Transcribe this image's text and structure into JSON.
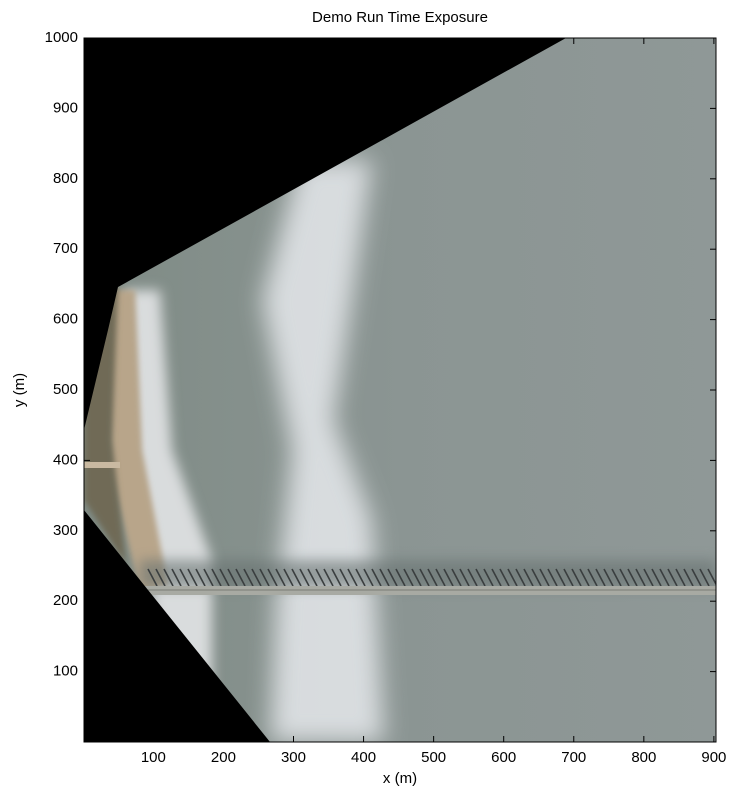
{
  "chart_data": {
    "type": "image",
    "title": "Demo Run Time Exposure",
    "x_label": "x (m)",
    "y_label": "y (m)",
    "xlim": [
      1,
      903
    ],
    "ylim": [
      0,
      1000
    ],
    "xticks": [
      100,
      200,
      300,
      400,
      500,
      600,
      700,
      800,
      900
    ],
    "yticks": [
      100,
      200,
      300,
      400,
      500,
      600,
      700,
      800,
      900,
      1000
    ]
  }
}
